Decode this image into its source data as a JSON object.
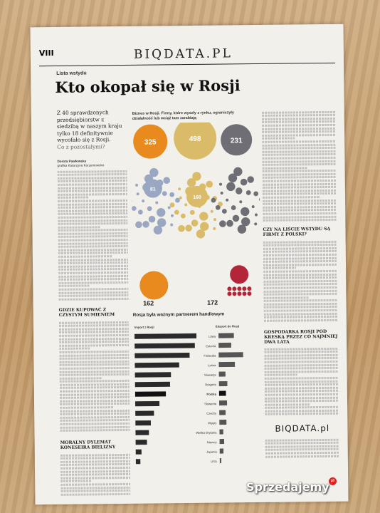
{
  "page": {
    "page_number": "VIII",
    "masthead": "BIQDATA.PL",
    "kicker": "Lista wstydu",
    "headline": "Kto okopał się w Rosji",
    "lead": "Z 40 sprawdzonych przedsiębiorstw z siedzibą w naszym kraju tylko 18 definitywnie wycofało się z Rosji.",
    "lead_question": "Co z pozostałymi?",
    "byline_1": "Dorota Pawłowska",
    "byline_2": "grafika Katarzyna Korzeniowska",
    "subhead_1": "Gdzie kupować z czystym sumieniem",
    "subhead_2": "Moralny dylemat koneseira bielizny",
    "subhead_3": "Czy na liście wstydu są firmy z Polski?",
    "subhead_4": "Gospodarka Rosji pod kreską przez co najmniej dwa lata",
    "footer_logo": "BIQDATA.pl"
  },
  "bubbles": {
    "title": "Biznes w Rosji. Firmy, które wyszły z rynku, ograniczyły działalność lub wciąż tam zarabiają",
    "top_values": [
      "325",
      "498",
      "231"
    ],
    "mid_values": [
      "81",
      "160"
    ],
    "bottom_values": [
      "162",
      "172"
    ],
    "colors": {
      "orange": "#e88a1e",
      "sand": "#d9bb6a",
      "gray": "#6e6e74",
      "steel": "#9aa7c2",
      "red": "#b3263a"
    }
  },
  "bars": {
    "title": "Rosja była ważnym partnerem handlowym",
    "left_head": "Import z Rosji",
    "right_head": "Eksport do Rosji",
    "countries": [
      "Litwa",
      "Estonia",
      "Finlandia",
      "Łotwa",
      "Słowacja",
      "Bułgaria",
      "Polska",
      "Słowenia",
      "Czechy",
      "Węgry",
      "Wielka Brytania",
      "Niemcy",
      "Japonia",
      "USA"
    ],
    "import_values": [
      24.6,
      23.9,
      21.8,
      17.6,
      14.3,
      13.9,
      12.2,
      9.6,
      7.4,
      6.1,
      5.3,
      4.5,
      2.3,
      1.8
    ],
    "export_values": [
      6.1,
      5.0,
      9.7,
      6.4,
      2.6,
      3.3,
      2.7,
      3.1,
      2.5,
      2.8,
      1.5,
      1.8,
      1.5,
      0.6
    ],
    "highlight": "Polska"
  }
}
